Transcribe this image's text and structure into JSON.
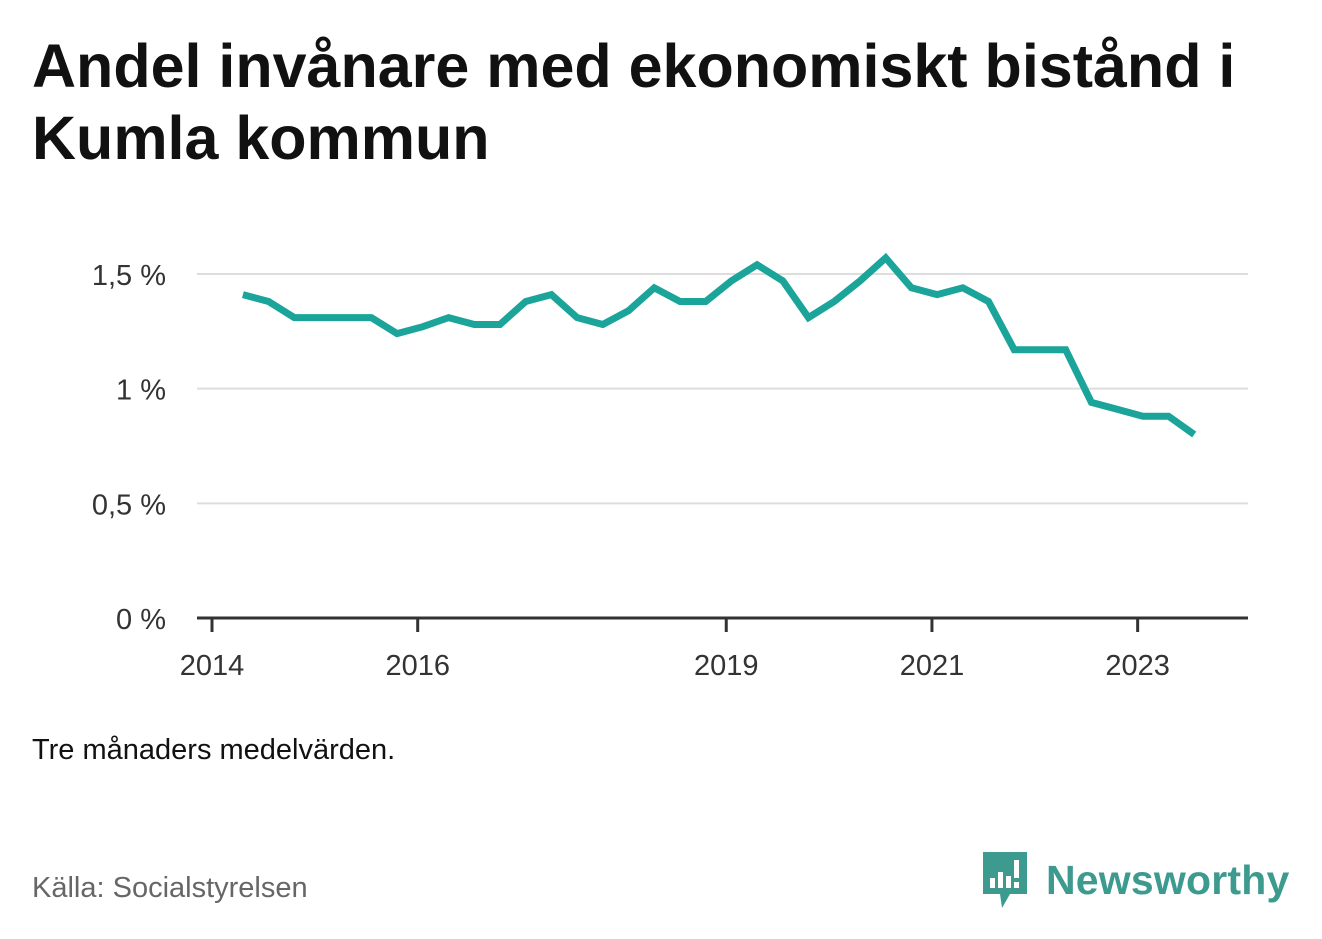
{
  "title": "Andel invånare med ekonomiskt bistånd i Kumla kommun",
  "note": "Tre månaders medelvärden.",
  "source": "Källa: Socialstyrelsen",
  "brand": "Newsworthy",
  "colors": {
    "line": "#1aa49a",
    "grid": "#dddddd",
    "axis": "#333333",
    "brand": "#3d9a8f"
  },
  "chart_data": {
    "type": "line",
    "title": "Andel invånare med ekonomiskt bistånd i Kumla kommun",
    "xlabel": "",
    "ylabel": "",
    "ylim": [
      0,
      1.5
    ],
    "yticks": [
      {
        "value": 0,
        "label": "0 %"
      },
      {
        "value": 0.5,
        "label": "0,5 %"
      },
      {
        "value": 1,
        "label": "1 %"
      },
      {
        "value": 1.5,
        "label": "1,5 %"
      }
    ],
    "xlim": [
      2014.0,
      2024.0
    ],
    "xticks": [
      {
        "value": 2014.0,
        "label": "2014"
      },
      {
        "value": 2016.0,
        "label": "2016"
      },
      {
        "value": 2019.0,
        "label": "2019"
      },
      {
        "value": 2021.0,
        "label": "2021"
      },
      {
        "value": 2023.0,
        "label": "2023"
      }
    ],
    "grid": true,
    "series": [
      {
        "x": [
          2014.3,
          2014.55,
          2014.8,
          2015.05,
          2015.3,
          2015.55,
          2015.8,
          2016.05,
          2016.3,
          2016.55,
          2016.8,
          2017.05,
          2017.3,
          2017.55,
          2017.8,
          2018.05,
          2018.3,
          2018.55,
          2018.8,
          2019.05,
          2019.3,
          2019.55,
          2019.8,
          2020.05,
          2020.3,
          2020.55,
          2020.8,
          2021.05,
          2021.3,
          2021.55,
          2021.8,
          2022.05,
          2022.3,
          2022.55,
          2022.8,
          2023.05,
          2023.3,
          2023.55
        ],
        "values": [
          1.41,
          1.38,
          1.31,
          1.31,
          1.31,
          1.31,
          1.24,
          1.27,
          1.31,
          1.28,
          1.28,
          1.38,
          1.41,
          1.31,
          1.28,
          1.34,
          1.44,
          1.38,
          1.38,
          1.47,
          1.54,
          1.47,
          1.31,
          1.38,
          1.47,
          1.57,
          1.44,
          1.41,
          1.44,
          1.38,
          1.17,
          1.17,
          1.17,
          0.94,
          0.91,
          0.88,
          0.88,
          0.8
        ]
      }
    ]
  }
}
